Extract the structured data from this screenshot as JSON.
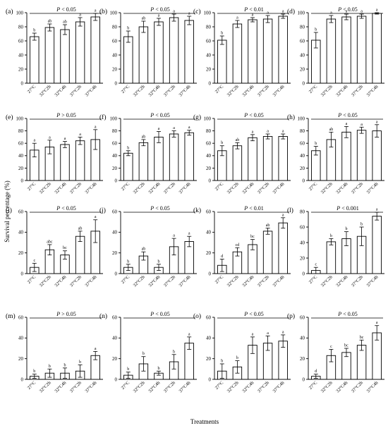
{
  "figure": {
    "ylabel": "Survival percentage (%)",
    "xlabel": "Treatments"
  },
  "chart_data": [
    {
      "type": "bar",
      "label": "(a)",
      "significance": "P < 0.05",
      "ylim": [
        0,
        100
      ],
      "yticks": [
        0,
        20,
        40,
        60,
        80,
        100
      ],
      "categories": [
        "27°C",
        "32°C2h",
        "32°C4h",
        "37°C2h",
        "37°C4h"
      ],
      "values": [
        66,
        79,
        76,
        87,
        94
      ],
      "errors": [
        5,
        5,
        7,
        6,
        5
      ],
      "letters": [
        "b",
        "ab",
        "ab",
        "a",
        "a"
      ]
    },
    {
      "type": "bar",
      "label": "(b)",
      "significance": "P < 0.05",
      "ylim": [
        0,
        100
      ],
      "yticks": [
        0,
        20,
        40,
        60,
        80,
        100
      ],
      "categories": [
        "27°C",
        "32°C2h",
        "32°C4h",
        "37°C2h",
        "37°C4h"
      ],
      "values": [
        66,
        80,
        87,
        93,
        89
      ],
      "errors": [
        8,
        8,
        5,
        5,
        6
      ],
      "letters": [
        "b",
        "ab",
        "a",
        "a",
        "a"
      ]
    },
    {
      "type": "bar",
      "label": "(c)",
      "significance": "P < 0.01",
      "ylim": [
        0,
        100
      ],
      "yticks": [
        0,
        20,
        40,
        60,
        80,
        100
      ],
      "categories": [
        "27°C",
        "32°C2h",
        "32°C4h",
        "37°C2h",
        "37°C4h"
      ],
      "values": [
        61,
        84,
        90,
        91,
        95
      ],
      "errors": [
        6,
        5,
        3,
        5,
        3
      ],
      "letters": [
        "b",
        "a",
        "a",
        "a",
        "a"
      ]
    },
    {
      "type": "bar",
      "label": "(d)",
      "significance": "P < 0.05",
      "ylim": [
        0,
        100
      ],
      "yticks": [
        0,
        20,
        40,
        60,
        80,
        100
      ],
      "categories": [
        "27°C",
        "32°C2h",
        "32°C4h",
        "37°C2h",
        "37°C4h"
      ],
      "values": [
        61,
        91,
        94,
        95,
        99
      ],
      "errors": [
        11,
        5,
        4,
        3,
        1
      ],
      "letters": [
        "b",
        "a",
        "a",
        "a",
        "a"
      ]
    },
    {
      "type": "bar",
      "label": "(e)",
      "significance": "P > 0.05",
      "ylim": [
        0,
        100
      ],
      "yticks": [
        0,
        20,
        40,
        60,
        80,
        100
      ],
      "categories": [
        "27°C",
        "32°C2h",
        "32°C4h",
        "37°C2h",
        "37°C4h"
      ],
      "values": [
        49,
        54,
        58,
        64,
        66
      ],
      "errors": [
        11,
        11,
        5,
        6,
        16
      ],
      "letters": [
        "a",
        "a",
        "a",
        "a",
        "a"
      ]
    },
    {
      "type": "bar",
      "label": "(f)",
      "significance": "P < 0.05",
      "ylim": [
        0,
        100
      ],
      "yticks": [
        0,
        20,
        40,
        60,
        80,
        100
      ],
      "categories": [
        "27°C",
        "32°C2h",
        "32°C4h",
        "37°C2h",
        "37°C4h"
      ],
      "values": [
        44,
        61,
        70,
        75,
        77
      ],
      "errors": [
        4,
        5,
        9,
        5,
        4
      ],
      "letters": [
        "b",
        "ab",
        "a",
        "a",
        "a"
      ]
    },
    {
      "type": "bar",
      "label": "(g)",
      "significance": "P < 0.05",
      "ylim": [
        0,
        100
      ],
      "yticks": [
        0,
        20,
        40,
        60,
        80,
        100
      ],
      "categories": [
        "27°C",
        "32°C2h",
        "32°C4h",
        "37°C2h",
        "37°C4h"
      ],
      "values": [
        48,
        56,
        69,
        71,
        71
      ],
      "errors": [
        8,
        5,
        5,
        4,
        4
      ],
      "letters": [
        "b",
        "ab",
        "a",
        "a",
        "a"
      ]
    },
    {
      "type": "bar",
      "label": "(h)",
      "significance": "P < 0.05",
      "ylim": [
        0,
        100
      ],
      "yticks": [
        0,
        20,
        40,
        60,
        80,
        100
      ],
      "categories": [
        "27°C",
        "32°C2h",
        "32°C4h",
        "37°C2h",
        "37°C4h"
      ],
      "values": [
        48,
        66,
        78,
        81,
        80
      ],
      "errors": [
        7,
        12,
        9,
        5,
        10
      ],
      "letters": [
        "b",
        "ab",
        "a",
        "a",
        "a"
      ]
    },
    {
      "type": "bar",
      "label": "(i)",
      "significance": "P < 0.05",
      "ylim": [
        0,
        60
      ],
      "yticks": [
        0,
        20,
        40,
        60
      ],
      "categories": [
        "27°C",
        "32°C2h",
        "32°C4h",
        "37°C2h",
        "37°C4h"
      ],
      "values": [
        6,
        23,
        18,
        36,
        41
      ],
      "errors": [
        4,
        5,
        4,
        5,
        11
      ],
      "letters": [
        "c",
        "abc",
        "bc",
        "ab",
        "a"
      ]
    },
    {
      "type": "bar",
      "label": "(j)",
      "significance": "P < 0.05",
      "ylim": [
        0,
        60
      ],
      "yticks": [
        0,
        20,
        40,
        60
      ],
      "categories": [
        "27°C",
        "32°C2h",
        "32°C4h",
        "37°C2h",
        "37°C4h"
      ],
      "values": [
        6,
        17,
        6,
        26,
        31
      ],
      "errors": [
        3,
        4,
        3,
        8,
        5
      ],
      "letters": [
        "b",
        "ab",
        "b",
        "a",
        "a"
      ]
    },
    {
      "type": "bar",
      "label": "(k)",
      "significance": "P < 0.01",
      "ylim": [
        0,
        60
      ],
      "yticks": [
        0,
        20,
        40,
        60
      ],
      "categories": [
        "27°C",
        "32°C2h",
        "32°C4h",
        "37°C2h",
        "37°C4h"
      ],
      "values": [
        8,
        21,
        28,
        41,
        49
      ],
      "errors": [
        6,
        4,
        5,
        3,
        5
      ],
      "letters": [
        "d",
        "cd",
        "bc",
        "ab",
        "a"
      ]
    },
    {
      "type": "bar",
      "label": "(l)",
      "significance": "P < 0.001",
      "ylim": [
        0,
        80
      ],
      "yticks": [
        0,
        20,
        40,
        60,
        80
      ],
      "categories": [
        "27°C",
        "32°C2h",
        "32°C4h",
        "37°C2h",
        "37°C4h"
      ],
      "values": [
        4,
        41,
        45,
        48,
        74
      ],
      "errors": [
        4,
        4,
        9,
        12,
        5
      ],
      "letters": [
        "c",
        "b",
        "b",
        "b",
        "a"
      ]
    },
    {
      "type": "bar",
      "label": "(m)",
      "significance": "P > 0.05",
      "ylim": [
        0,
        60
      ],
      "yticks": [
        0,
        20,
        40,
        60
      ],
      "categories": [
        "27°C",
        "32°C2h",
        "32°C4h",
        "37°C2h",
        "37°C4h"
      ],
      "values": [
        3,
        6,
        6,
        8,
        23
      ],
      "errors": [
        2,
        4,
        5,
        6,
        4
      ],
      "letters": [
        "b",
        "b",
        "b",
        "b",
        "a"
      ]
    },
    {
      "type": "bar",
      "label": "(n)",
      "significance": "P < 0.05",
      "ylim": [
        0,
        60
      ],
      "yticks": [
        0,
        20,
        40,
        60
      ],
      "categories": [
        "27°C",
        "32°C2h",
        "32°C4h",
        "37°C2h",
        "37°C4h"
      ],
      "values": [
        4,
        15,
        6,
        17,
        35
      ],
      "errors": [
        3,
        7,
        2,
        7,
        6
      ],
      "letters": [
        "b",
        "b",
        "b",
        "b",
        "a"
      ]
    },
    {
      "type": "bar",
      "label": "(o)",
      "significance": "P < 0.05",
      "ylim": [
        0,
        60
      ],
      "yticks": [
        0,
        20,
        40,
        60
      ],
      "categories": [
        "27°C",
        "32°C2h",
        "32°C4h",
        "37°C2h",
        "37°C4h"
      ],
      "values": [
        8,
        12,
        33,
        35,
        37
      ],
      "errors": [
        7,
        6,
        8,
        7,
        6
      ],
      "letters": [
        "b",
        "b",
        "a",
        "a",
        "a"
      ]
    },
    {
      "type": "bar",
      "label": "(p)",
      "significance": "P < 0.05",
      "ylim": [
        0,
        60
      ],
      "yticks": [
        0,
        20,
        40,
        60
      ],
      "categories": [
        "27°C",
        "32°C2h",
        "32°C4h",
        "37°C2h",
        "37°C4h"
      ],
      "values": [
        3,
        23,
        26,
        33,
        45
      ],
      "errors": [
        2,
        6,
        4,
        5,
        7
      ],
      "letters": [
        "d",
        "c",
        "bc",
        "bc",
        "a"
      ]
    }
  ]
}
